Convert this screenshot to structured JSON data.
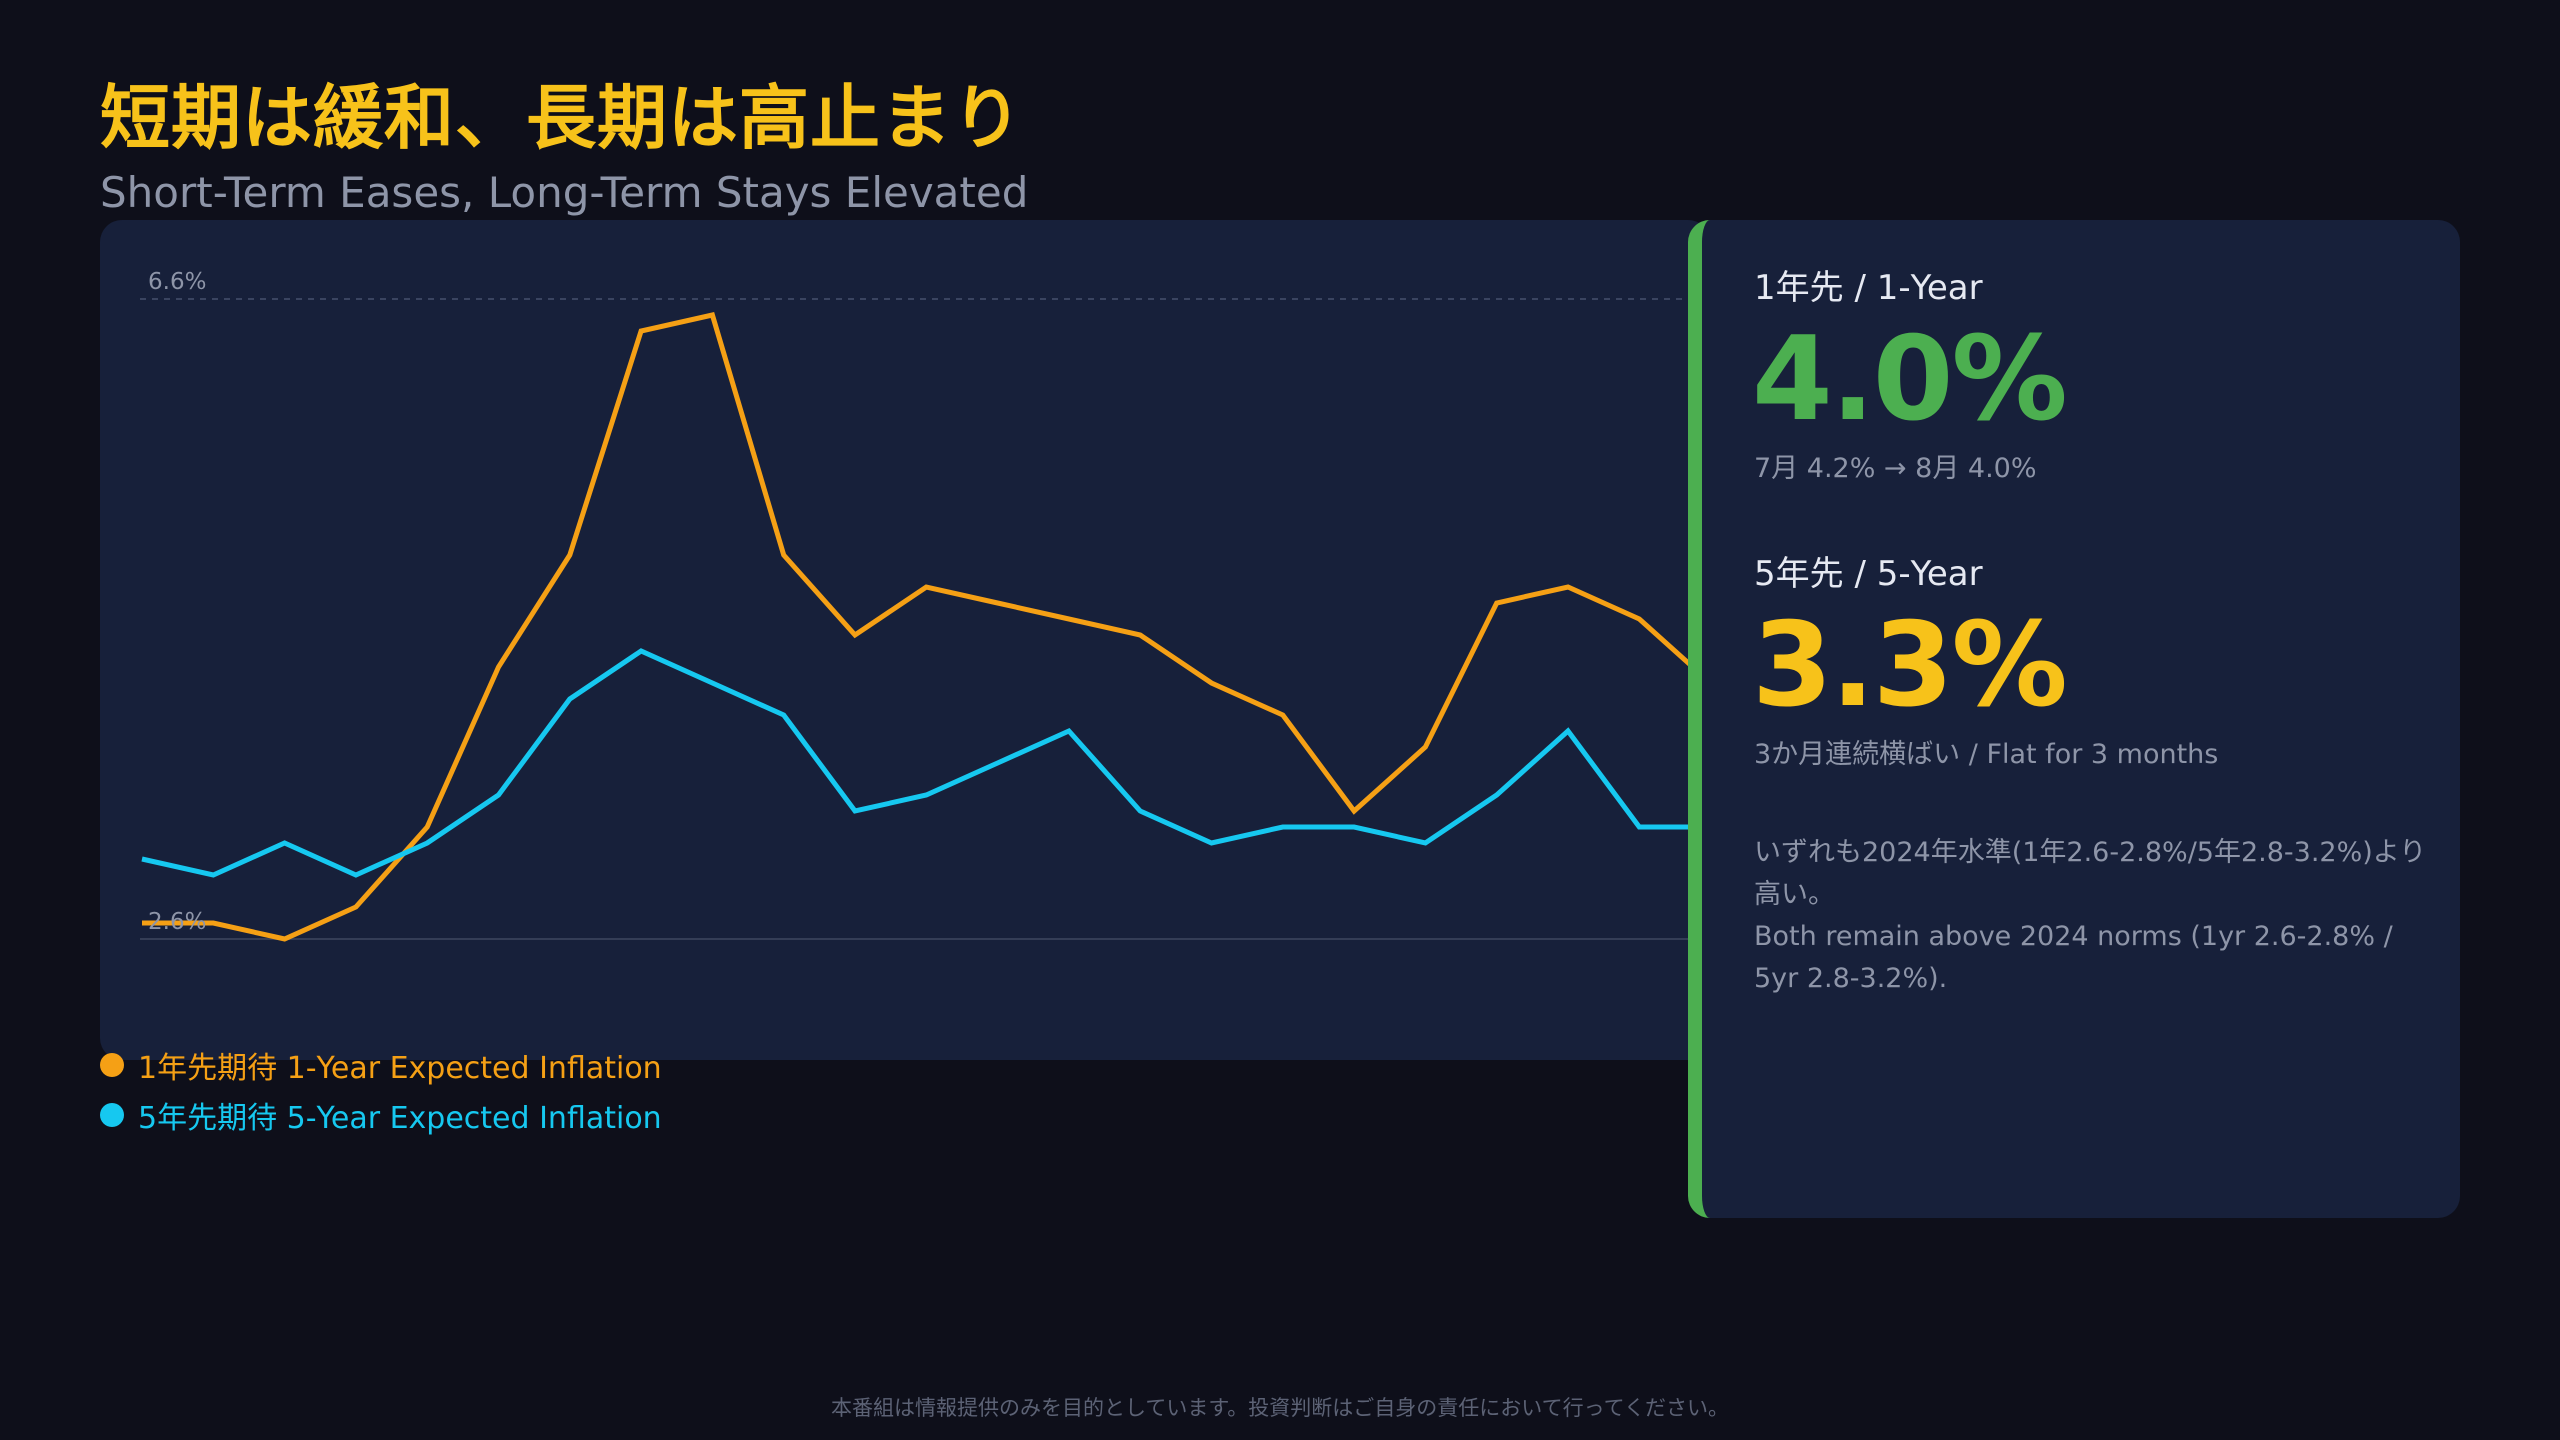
{
  "title": "短期は緩和、長期は高止まり",
  "subtitle": "Short-Term Eases, Long-Term Stays Elevated",
  "chart_data": {
    "type": "line",
    "ylim": [
      2.6,
      6.6
    ],
    "y_ref_labels": [
      "6.6%",
      "2.6%"
    ],
    "grid": false,
    "legend_position": "bottom-left",
    "series": [
      {
        "name": "1年先期待 1-Year Expected Inflation",
        "color": "#f5a015",
        "values": [
          2.7,
          2.7,
          2.6,
          2.8,
          3.3,
          4.3,
          5.0,
          6.4,
          6.5,
          5.0,
          4.5,
          4.8,
          4.7,
          4.6,
          4.5,
          4.2,
          4.0,
          3.4,
          3.8,
          4.7,
          4.8,
          4.6,
          4.2
        ]
      },
      {
        "name": "5年先期待 5-Year Expected Inflation",
        "color": "#16c8f0",
        "values": [
          3.1,
          3.0,
          3.2,
          3.0,
          3.2,
          3.5,
          4.1,
          4.4,
          4.2,
          4.0,
          3.4,
          3.5,
          3.7,
          3.9,
          3.4,
          3.2,
          3.3,
          3.3,
          3.2,
          3.5,
          3.9,
          3.3,
          3.3
        ]
      }
    ]
  },
  "side": {
    "k1_label": "1年先 / 1-Year",
    "k1_value": "4.0%",
    "k1_color": "#4caf50",
    "k1_note": "7月 4.2% → 8月 4.0%",
    "k2_label": "5年先 / 5-Year",
    "k2_value": "3.3%",
    "k2_color": "#f7c21a",
    "k2_note": "3か月連続横ばい / Flat for 3 months",
    "note_jp_1": "いずれも2024年水準(1年2.6-2.8%/5年2.8-3.2%)より",
    "note_jp_2": "高い。",
    "note_en_1": "Both remain above 2024 norms (1yr 2.6-2.8% /",
    "note_en_2": "5yr 2.8-3.2%)."
  },
  "footer": "本番組は情報提供のみを目的としています。投資判断はご自身の責任において行ってください。"
}
